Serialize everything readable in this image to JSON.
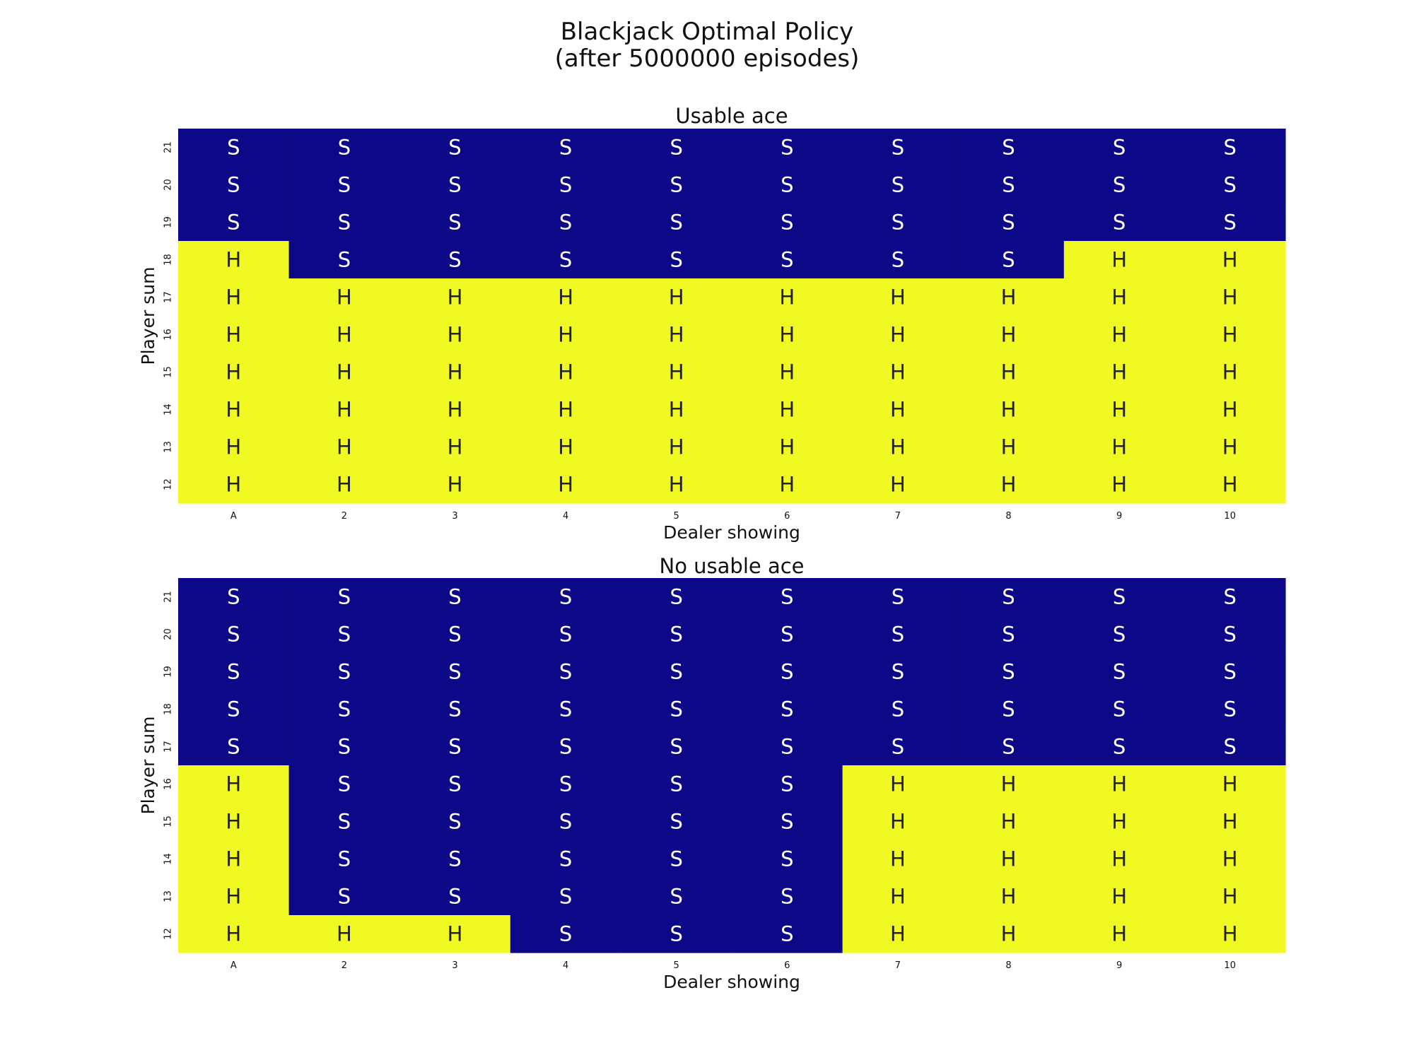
{
  "figure": {
    "title_line1": "Blackjack Optimal Policy",
    "title_line2": "(after 5000000 episodes)"
  },
  "colors": {
    "stick": "#0d0887",
    "hit": "#f0f921",
    "stick_text": "#ffffff",
    "hit_text": "#222222",
    "tick_text": "#111111"
  },
  "chart_data": [
    {
      "type": "heatmap",
      "title": "Usable ace",
      "xlabel": "Dealer showing",
      "ylabel": "Player sum",
      "x_categories": [
        "A",
        "2",
        "3",
        "4",
        "5",
        "6",
        "7",
        "8",
        "9",
        "10"
      ],
      "y_categories": [
        "21",
        "20",
        "19",
        "18",
        "17",
        "16",
        "15",
        "14",
        "13",
        "12"
      ],
      "cells": [
        [
          "S",
          "S",
          "S",
          "S",
          "S",
          "S",
          "S",
          "S",
          "S",
          "S"
        ],
        [
          "S",
          "S",
          "S",
          "S",
          "S",
          "S",
          "S",
          "S",
          "S",
          "S"
        ],
        [
          "S",
          "S",
          "S",
          "S",
          "S",
          "S",
          "S",
          "S",
          "S",
          "S"
        ],
        [
          "H",
          "S",
          "S",
          "S",
          "S",
          "S",
          "S",
          "S",
          "H",
          "H"
        ],
        [
          "H",
          "H",
          "H",
          "H",
          "H",
          "H",
          "H",
          "H",
          "H",
          "H"
        ],
        [
          "H",
          "H",
          "H",
          "H",
          "H",
          "H",
          "H",
          "H",
          "H",
          "H"
        ],
        [
          "H",
          "H",
          "H",
          "H",
          "H",
          "H",
          "H",
          "H",
          "H",
          "H"
        ],
        [
          "H",
          "H",
          "H",
          "H",
          "H",
          "H",
          "H",
          "H",
          "H",
          "H"
        ],
        [
          "H",
          "H",
          "H",
          "H",
          "H",
          "H",
          "H",
          "H",
          "H",
          "H"
        ],
        [
          "H",
          "H",
          "H",
          "H",
          "H",
          "H",
          "H",
          "H",
          "H",
          "H"
        ]
      ]
    },
    {
      "type": "heatmap",
      "title": "No usable ace",
      "xlabel": "Dealer showing",
      "ylabel": "Player sum",
      "x_categories": [
        "A",
        "2",
        "3",
        "4",
        "5",
        "6",
        "7",
        "8",
        "9",
        "10"
      ],
      "y_categories": [
        "21",
        "20",
        "19",
        "18",
        "17",
        "16",
        "15",
        "14",
        "13",
        "12"
      ],
      "cells": [
        [
          "S",
          "S",
          "S",
          "S",
          "S",
          "S",
          "S",
          "S",
          "S",
          "S"
        ],
        [
          "S",
          "S",
          "S",
          "S",
          "S",
          "S",
          "S",
          "S",
          "S",
          "S"
        ],
        [
          "S",
          "S",
          "S",
          "S",
          "S",
          "S",
          "S",
          "S",
          "S",
          "S"
        ],
        [
          "S",
          "S",
          "S",
          "S",
          "S",
          "S",
          "S",
          "S",
          "S",
          "S"
        ],
        [
          "S",
          "S",
          "S",
          "S",
          "S",
          "S",
          "S",
          "S",
          "S",
          "S"
        ],
        [
          "H",
          "S",
          "S",
          "S",
          "S",
          "S",
          "H",
          "H",
          "H",
          "H"
        ],
        [
          "H",
          "S",
          "S",
          "S",
          "S",
          "S",
          "H",
          "H",
          "H",
          "H"
        ],
        [
          "H",
          "S",
          "S",
          "S",
          "S",
          "S",
          "H",
          "H",
          "H",
          "H"
        ],
        [
          "H",
          "S",
          "S",
          "S",
          "S",
          "S",
          "H",
          "H",
          "H",
          "H"
        ],
        [
          "H",
          "H",
          "H",
          "S",
          "S",
          "S",
          "H",
          "H",
          "H",
          "H"
        ]
      ]
    }
  ]
}
